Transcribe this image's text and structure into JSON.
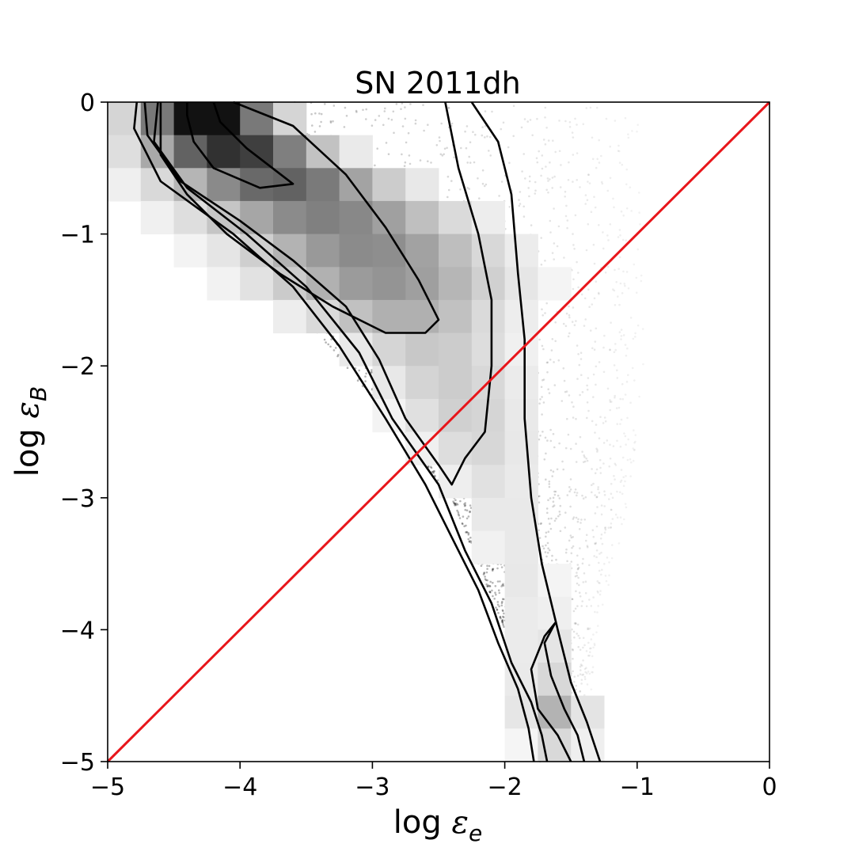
{
  "chart_data": {
    "type": "heatmap",
    "title": "SN 2011dh",
    "xlabel": {
      "prefix": "log ",
      "symbol": "ε",
      "subscript": "e"
    },
    "ylabel": {
      "prefix": "log ",
      "symbol": "ε",
      "subscript": "B"
    },
    "xlim": [
      -5,
      0
    ],
    "ylim": [
      -5,
      0
    ],
    "xticks": [
      -5,
      -4,
      -3,
      -2,
      -1,
      0
    ],
    "yticks": [
      -5,
      -4,
      -3,
      -2,
      -1,
      0
    ],
    "xtick_labels": [
      "−5",
      "−4",
      "−3",
      "−2",
      "−1",
      "0"
    ],
    "ytick_labels": [
      "−5",
      "−4",
      "−3",
      "−2",
      "−1",
      "0"
    ],
    "grid": false,
    "equality_line": {
      "points": [
        [
          -5,
          -5
        ],
        [
          0,
          0
        ]
      ],
      "color": "#e8161b"
    },
    "histogram": {
      "cell_size": 0.25,
      "density_profile": [
        {
          "y": -0.125,
          "center": -4.25,
          "spread": 0.33,
          "peak": 1.0
        },
        {
          "y": -0.375,
          "center": -4.05,
          "spread": 0.43,
          "peak": 0.82
        },
        {
          "y": -0.625,
          "center": -3.7,
          "spread": 0.55,
          "peak": 0.62
        },
        {
          "y": -0.875,
          "center": -3.35,
          "spread": 0.62,
          "peak": 0.5
        },
        {
          "y": -1.125,
          "center": -3.05,
          "spread": 0.62,
          "peak": 0.46
        },
        {
          "y": -1.375,
          "center": -2.9,
          "spread": 0.6,
          "peak": 0.42
        },
        {
          "y": -1.625,
          "center": -2.75,
          "spread": 0.5,
          "peak": 0.32
        },
        {
          "y": -1.875,
          "center": -2.55,
          "spread": 0.42,
          "peak": 0.22
        },
        {
          "y": -2.125,
          "center": -2.4,
          "spread": 0.38,
          "peak": 0.2
        },
        {
          "y": -2.375,
          "center": -2.3,
          "spread": 0.34,
          "peak": 0.19
        },
        {
          "y": -2.625,
          "center": -2.2,
          "spread": 0.3,
          "peak": 0.16
        },
        {
          "y": -2.875,
          "center": -2.1,
          "spread": 0.26,
          "peak": 0.12
        },
        {
          "y": -3.125,
          "center": -2.0,
          "spread": 0.22,
          "peak": 0.1
        },
        {
          "y": -3.375,
          "center": -1.92,
          "spread": 0.2,
          "peak": 0.09
        },
        {
          "y": -3.625,
          "center": -1.85,
          "spread": 0.18,
          "peak": 0.09
        },
        {
          "y": -3.875,
          "center": -1.78,
          "spread": 0.18,
          "peak": 0.09
        },
        {
          "y": -4.125,
          "center": -1.72,
          "spread": 0.17,
          "peak": 0.12
        },
        {
          "y": -4.375,
          "center": -1.68,
          "spread": 0.17,
          "peak": 0.16
        },
        {
          "y": -4.625,
          "center": -1.62,
          "spread": 0.17,
          "peak": 0.3
        },
        {
          "y": -4.875,
          "center": -1.6,
          "spread": 0.17,
          "peak": 0.15
        }
      ],
      "scatter_envelope": [
        {
          "y": 0.0,
          "left": -4.65,
          "right": -1.0
        },
        {
          "y": -1.0,
          "left": -4.1,
          "right": -0.95
        },
        {
          "y": -2.0,
          "left": -3.2,
          "right": -0.95
        },
        {
          "y": -3.0,
          "left": -2.4,
          "right": -1.05
        },
        {
          "y": -4.0,
          "left": -2.0,
          "right": -1.3
        },
        {
          "y": -5.0,
          "left": -1.75,
          "right": -1.4
        }
      ]
    },
    "contours": [
      {
        "level": "inner",
        "paths": [
          [
            [
              -4.4,
              0
            ],
            [
              -4.4,
              -0.1
            ],
            [
              -4.35,
              -0.3
            ],
            [
              -4.2,
              -0.5
            ],
            [
              -3.85,
              -0.65
            ],
            [
              -3.6,
              -0.62
            ],
            [
              -3.95,
              -0.35
            ],
            [
              -4.15,
              -0.15
            ],
            [
              -4.2,
              0
            ]
          ],
          [
            [
              -4.05,
              0
            ],
            [
              -3.6,
              -0.18
            ],
            [
              -3.2,
              -0.55
            ],
            [
              -2.9,
              -0.95
            ],
            [
              -2.65,
              -1.35
            ],
            [
              -2.5,
              -1.65
            ],
            [
              -2.6,
              -1.75
            ],
            [
              -2.9,
              -1.75
            ],
            [
              -3.3,
              -1.55
            ],
            [
              -3.7,
              -1.3
            ],
            [
              -4.1,
              -1.0
            ],
            [
              -4.4,
              -0.7
            ],
            [
              -4.6,
              -0.4
            ],
            [
              -4.6,
              0
            ]
          ]
        ]
      },
      {
        "level": "middle",
        "paths": [
          [
            [
              -4.72,
              0
            ],
            [
              -4.7,
              -0.25
            ],
            [
              -4.45,
              -0.6
            ],
            [
              -4.0,
              -0.9
            ],
            [
              -3.6,
              -1.2
            ],
            [
              -3.2,
              -1.55
            ],
            [
              -2.95,
              -1.95
            ],
            [
              -2.75,
              -2.4
            ],
            [
              -2.5,
              -2.75
            ],
            [
              -2.4,
              -2.9
            ],
            [
              -2.3,
              -2.7
            ],
            [
              -2.15,
              -2.5
            ],
            [
              -2.1,
              -2.0
            ],
            [
              -2.1,
              -1.5
            ],
            [
              -2.2,
              -1.0
            ],
            [
              -2.35,
              -0.5
            ],
            [
              -2.45,
              0
            ]
          ]
        ]
      },
      {
        "level": "outer",
        "paths": [
          [
            [
              -4.78,
              0
            ],
            [
              -4.8,
              -0.2
            ],
            [
              -4.6,
              -0.6
            ],
            [
              -4.05,
              -1.0
            ],
            [
              -3.6,
              -1.4
            ],
            [
              -3.25,
              -1.85
            ],
            [
              -2.9,
              -2.4
            ],
            [
              -2.6,
              -2.9
            ],
            [
              -2.4,
              -3.3
            ],
            [
              -2.2,
              -3.7
            ],
            [
              -2.05,
              -4.1
            ],
            [
              -1.9,
              -4.45
            ],
            [
              -1.82,
              -4.75
            ],
            [
              -1.78,
              -5.0
            ]
          ],
          [
            [
              -2.25,
              0
            ],
            [
              -2.05,
              -0.3
            ],
            [
              -1.95,
              -0.7
            ],
            [
              -1.9,
              -1.3
            ],
            [
              -1.85,
              -1.8
            ],
            [
              -1.85,
              -2.4
            ],
            [
              -1.8,
              -3.0
            ],
            [
              -1.72,
              -3.5
            ],
            [
              -1.6,
              -4.0
            ],
            [
              -1.5,
              -4.4
            ],
            [
              -1.38,
              -4.7
            ],
            [
              -1.28,
              -5.0
            ]
          ],
          [
            [
              -4.62,
              0
            ],
            [
              -4.65,
              -0.3
            ],
            [
              -4.4,
              -0.65
            ],
            [
              -3.95,
              -1.0
            ],
            [
              -3.5,
              -1.4
            ],
            [
              -3.1,
              -1.9
            ],
            [
              -2.85,
              -2.4
            ],
            [
              -2.5,
              -2.9
            ],
            [
              -2.3,
              -3.4
            ],
            [
              -2.1,
              -3.8
            ],
            [
              -1.95,
              -4.25
            ],
            [
              -1.8,
              -4.55
            ],
            [
              -1.72,
              -4.8
            ],
            [
              -1.68,
              -5.0
            ]
          ],
          [
            [
              -1.4,
              -5.0
            ],
            [
              -1.45,
              -4.8
            ],
            [
              -1.55,
              -4.6
            ],
            [
              -1.65,
              -4.35
            ],
            [
              -1.7,
              -4.1
            ],
            [
              -1.62,
              -3.95
            ],
            [
              -1.7,
              -4.05
            ],
            [
              -1.8,
              -4.3
            ],
            [
              -1.75,
              -4.6
            ],
            [
              -1.6,
              -4.8
            ],
            [
              -1.5,
              -5.0
            ]
          ]
        ]
      }
    ]
  }
}
